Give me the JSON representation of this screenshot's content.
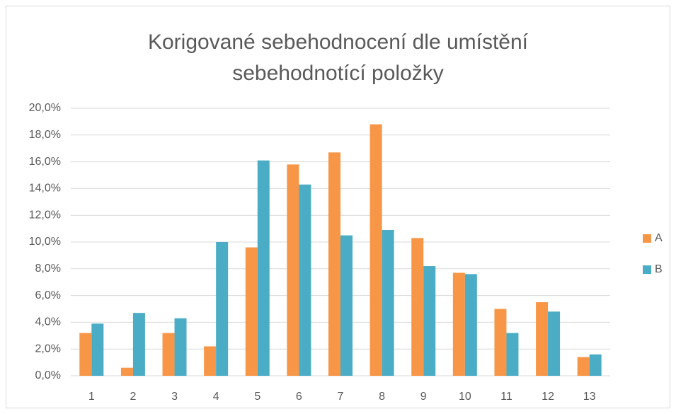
{
  "chart_data": {
    "type": "bar",
    "title": "Korigované sebehodnocení dle umístění sebehodnotící položky",
    "categories": [
      "1",
      "2",
      "3",
      "4",
      "5",
      "6",
      "7",
      "8",
      "9",
      "10",
      "11",
      "12",
      "13"
    ],
    "series": [
      {
        "name": "A",
        "color": "#f79646",
        "values": [
          3.2,
          0.6,
          3.2,
          2.2,
          9.6,
          15.8,
          16.7,
          18.8,
          10.3,
          7.7,
          5.0,
          5.5,
          1.4
        ]
      },
      {
        "name": "B",
        "color": "#4bacc6",
        "values": [
          3.9,
          4.7,
          4.3,
          10.0,
          16.1,
          14.3,
          10.5,
          10.9,
          8.2,
          7.6,
          3.2,
          4.8,
          1.6
        ]
      }
    ],
    "ylim": [
      0,
      20
    ],
    "yticks": [
      {
        "value": 0,
        "label": "0,0%"
      },
      {
        "value": 2,
        "label": "2,0%"
      },
      {
        "value": 4,
        "label": "4,0%"
      },
      {
        "value": 6,
        "label": "6,0%"
      },
      {
        "value": 8,
        "label": "8,0%"
      },
      {
        "value": 10,
        "label": "10,0%"
      },
      {
        "value": 12,
        "label": "12,0%"
      },
      {
        "value": 14,
        "label": "14,0%"
      },
      {
        "value": 16,
        "label": "16,0%"
      },
      {
        "value": 18,
        "label": "18,0%"
      },
      {
        "value": 20,
        "label": "20,0%"
      }
    ],
    "grid": true,
    "legend": "right"
  }
}
